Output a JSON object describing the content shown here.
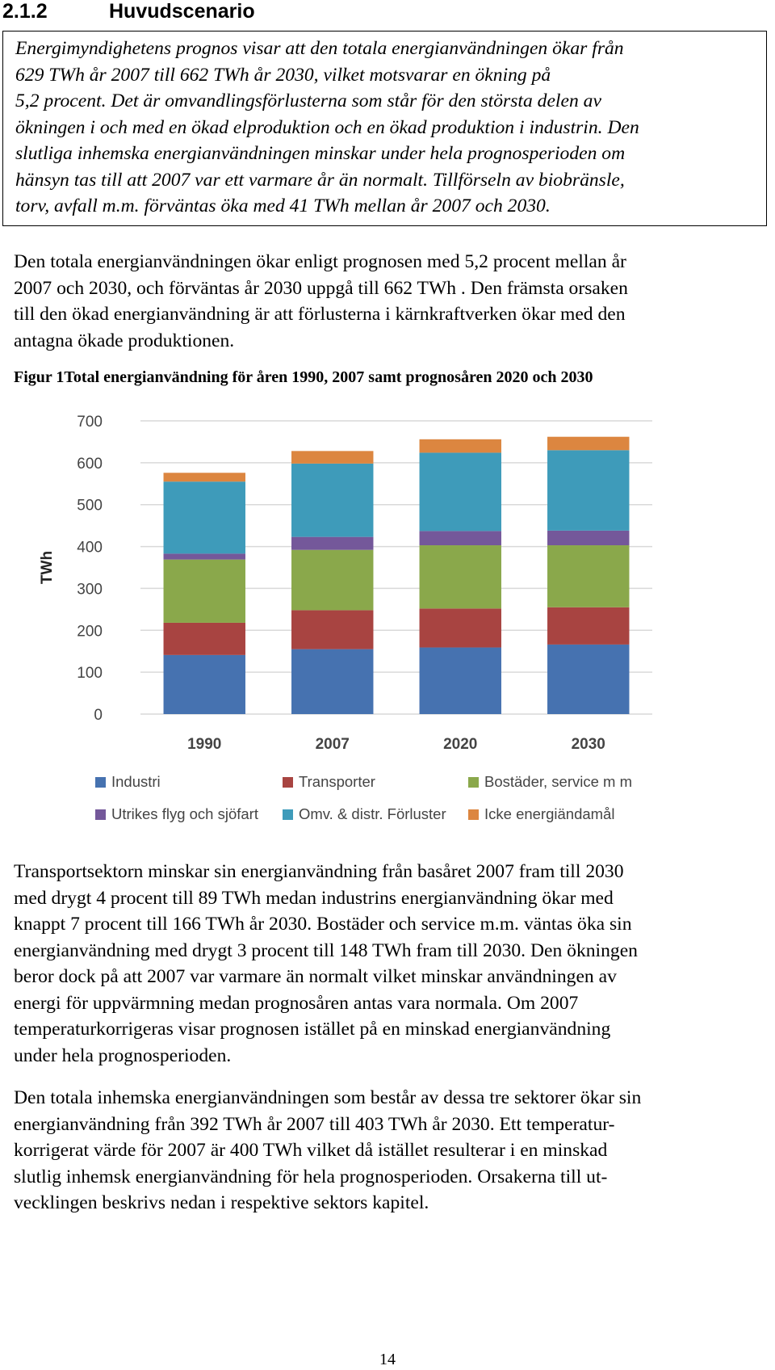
{
  "section": {
    "number": "2.1.2",
    "title": "Huvudscenario"
  },
  "summary_box_lines": [
    "Energimyndighetens prognos visar att den totala energianvändningen ökar från",
    "629 TWh år 2007 till 662 TWh år 2030, vilket motsvarar en ökning på",
    "5,2 procent. Det är omvandlingsförlusterna som står för den största delen av",
    "ökningen i och med en ökad elproduktion och en ökad produktion i industrin. Den",
    "slutliga inhemska energianvändningen minskar under hela prognosperioden om",
    "hänsyn tas till att 2007 var ett varmare år än normalt. Tillförseln av biobränsle,",
    "torv, avfall m.m. förväntas öka med 41 TWh mellan år 2007 och 2030."
  ],
  "paragraph1_lines": [
    "Den totala energianvändningen ökar enligt prognosen med 5,2 procent mellan år",
    "2007 och 2030, och förväntas år 2030 uppgå till 662 TWh . Den främsta orsaken",
    "till den ökad energianvändning är att förlusterna i kärnkraftverken ökar med den",
    "antagna ökade produktionen."
  ],
  "figure_caption": "Figur 1Total energianvändning för åren 1990, 2007 samt prognosåren 2020 och 2030",
  "chart_data": {
    "type": "bar",
    "stacked": true,
    "categories": [
      "1990",
      "2007",
      "2020",
      "2030"
    ],
    "ylabel": "TWh",
    "ylim": [
      0,
      700
    ],
    "yticks": [
      "0",
      "100",
      "200",
      "300",
      "400",
      "500",
      "600",
      "700"
    ],
    "grid": true,
    "legend_position": "bottom",
    "series": [
      {
        "name": "Industri",
        "color": "#4672b0",
        "values": [
          141,
          155,
          159,
          166
        ]
      },
      {
        "name": "Transporter",
        "color": "#a84441",
        "values": [
          77,
          93,
          93,
          89
        ]
      },
      {
        "name": "Bostäder, service m m",
        "color": "#8aa84b",
        "values": [
          151,
          144,
          151,
          148
        ]
      },
      {
        "name": "Utrikes flyg och sjöfart",
        "color": "#74589a",
        "values": [
          14,
          31,
          34,
          35
        ]
      },
      {
        "name": "Omv. & distr. Förluster",
        "color": "#3e9bba",
        "values": [
          172,
          175,
          187,
          192
        ]
      },
      {
        "name": "Icke energiändamål",
        "color": "#dc8640",
        "values": [
          21,
          30,
          32,
          32
        ]
      }
    ]
  },
  "paragraph3_lines": [
    "Transportsektorn minskar sin energianvändning från basåret 2007 fram till 2030",
    "med drygt 4 procent till 89 TWh medan industrins energianvändning ökar med",
    "knappt 7 procent till 166 TWh år 2030. Bostäder och service m.m. väntas öka sin",
    "energianvändning med drygt 3 procent till 148 TWh fram till 2030. Den ökningen",
    "beror dock på att 2007 var varmare än normalt vilket minskar användningen av",
    "energi för uppvärmning medan prognosåren antas vara normala. Om 2007",
    "temperaturkorrigeras visar prognosen istället på en minskad energianvändning",
    "under hela prognosperioden."
  ],
  "paragraph4_lines": [
    "Den totala inhemska energianvändningen som består av dessa tre sektorer ökar sin",
    "energianvändning från 392 TWh år 2007 till 403 TWh år 2030. Ett temperatur-",
    "korrigerat värde för 2007 är 400 TWh vilket då istället resulterar i en minskad",
    "slutlig inhemsk energianvändning för hela prognosperioden. Orsakerna till ut-",
    "vecklingen beskrivs nedan i respektive sektors kapitel."
  ],
  "page_number": "14"
}
